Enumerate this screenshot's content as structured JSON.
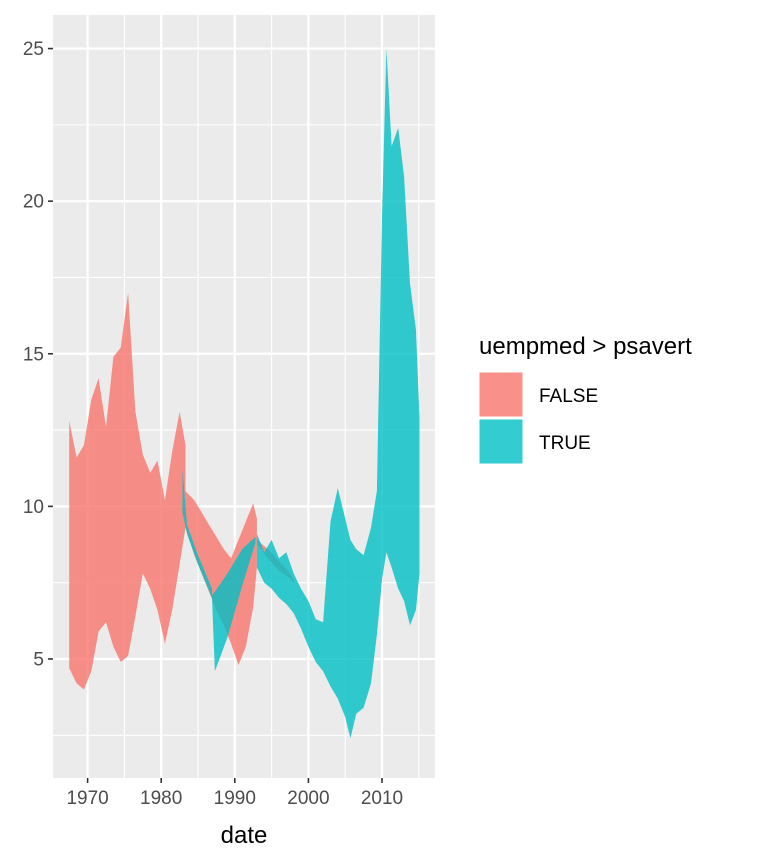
{
  "chart_data": {
    "type": "area",
    "title": "",
    "xlabel": "date",
    "ylabel": "",
    "xlim": [
      1965.3,
      2017.2
    ],
    "ylim": [
      1.1,
      26.1
    ],
    "x_ticks": [
      1970,
      1980,
      1990,
      2000,
      2010
    ],
    "x_tick_labels": [
      "1970",
      "1980",
      "1990",
      "2000",
      "2010"
    ],
    "y_ticks": [
      5,
      10,
      15,
      20,
      25
    ],
    "y_tick_labels": [
      "5",
      "10",
      "15",
      "20",
      "25"
    ],
    "grid": true,
    "legend": {
      "title": "uempmed > psavert",
      "position": "right"
    },
    "series": [
      {
        "name": "FALSE",
        "color": "#F8766D",
        "segments": [
          {
            "x": [
              1967.5,
              1968.5,
              1969.5,
              1970.5,
              1971.5,
              1972.5,
              1973.5,
              1974.5,
              1975.5,
              1976.5,
              1977.5,
              1978.5,
              1979.5,
              1980.5,
              1981.5,
              1982.5,
              1983.3
            ],
            "lower": [
              4.7,
              4.2,
              4.0,
              4.6,
              5.9,
              6.2,
              5.4,
              4.9,
              5.1,
              6.4,
              7.8,
              7.3,
              6.6,
              5.5,
              6.6,
              8.1,
              9.3
            ],
            "upper": [
              12.8,
              11.6,
              12.0,
              13.5,
              14.2,
              12.6,
              14.9,
              15.2,
              17.0,
              13.1,
              11.7,
              11.1,
              11.5,
              10.2,
              11.8,
              13.1,
              12.0
            ]
          },
          {
            "x": [
              1983.3,
              1984.5,
              1985.5,
              1986.5,
              1987.5,
              1988.5,
              1989.5,
              1990.5,
              1991.5,
              1992.5,
              1993.0
            ],
            "lower": [
              9.3,
              8.4,
              7.8,
              7.2,
              6.6,
              6.1,
              5.5,
              4.8,
              5.4,
              6.7,
              8.0
            ],
            "upper": [
              10.5,
              10.2,
              9.8,
              9.4,
              9.0,
              8.6,
              8.3,
              8.9,
              9.5,
              10.1,
              9.6
            ]
          },
          {
            "x": [
              1993.0,
              1994.5,
              1996.0,
              1997.2,
              1998.0
            ],
            "lower": [
              8.8,
              8.3,
              7.9,
              7.7,
              7.5
            ],
            "upper": [
              8.9,
              8.6,
              8.2,
              7.9,
              7.6
            ]
          }
        ]
      },
      {
        "name": "TRUE",
        "color": "#00BFC4",
        "segments": [
          {
            "x": [
              1982.9,
              1983.5,
              1985.0,
              1986.9
            ],
            "lower": [
              9.8,
              9.1,
              8.1,
              7.0
            ],
            "upper": [
              11.2,
              9.4,
              8.4,
              7.3
            ]
          },
          {
            "x": [
              1986.9,
              1987.3,
              1989.0,
              1991.0,
              1992.8
            ],
            "lower": [
              7.0,
              4.6,
              5.7,
              7.4,
              8.8
            ],
            "upper": [
              7.1,
              7.2,
              7.8,
              8.6,
              9.0
            ]
          },
          {
            "x": [
              1993.0,
              1994.0,
              1995.0,
              1996.0,
              1997.0,
              1998.0,
              1999.0,
              2000.0,
              2001.0,
              2002.0,
              2003.0,
              2004.0,
              2005.0,
              2005.7,
              2006.5,
              2007.5,
              2008.5,
              2009.3,
              2010.0,
              2010.6,
              2011.3,
              2012.2,
              2013.0,
              2013.8,
              2014.6,
              2015.1
            ],
            "lower": [
              8.0,
              7.5,
              7.3,
              7.0,
              6.8,
              6.5,
              6.0,
              5.4,
              4.9,
              4.6,
              4.1,
              3.7,
              3.1,
              2.4,
              3.2,
              3.4,
              4.2,
              5.8,
              7.6,
              8.5,
              8.0,
              7.3,
              6.9,
              6.1,
              6.6,
              7.8
            ],
            "upper": [
              9.1,
              8.5,
              8.9,
              8.3,
              8.5,
              7.8,
              7.3,
              6.9,
              6.3,
              6.2,
              9.5,
              10.6,
              9.6,
              8.9,
              8.6,
              8.4,
              9.3,
              10.5,
              19.5,
              25.0,
              21.8,
              22.4,
              20.8,
              17.3,
              15.8,
              12.9
            ]
          }
        ]
      }
    ]
  }
}
